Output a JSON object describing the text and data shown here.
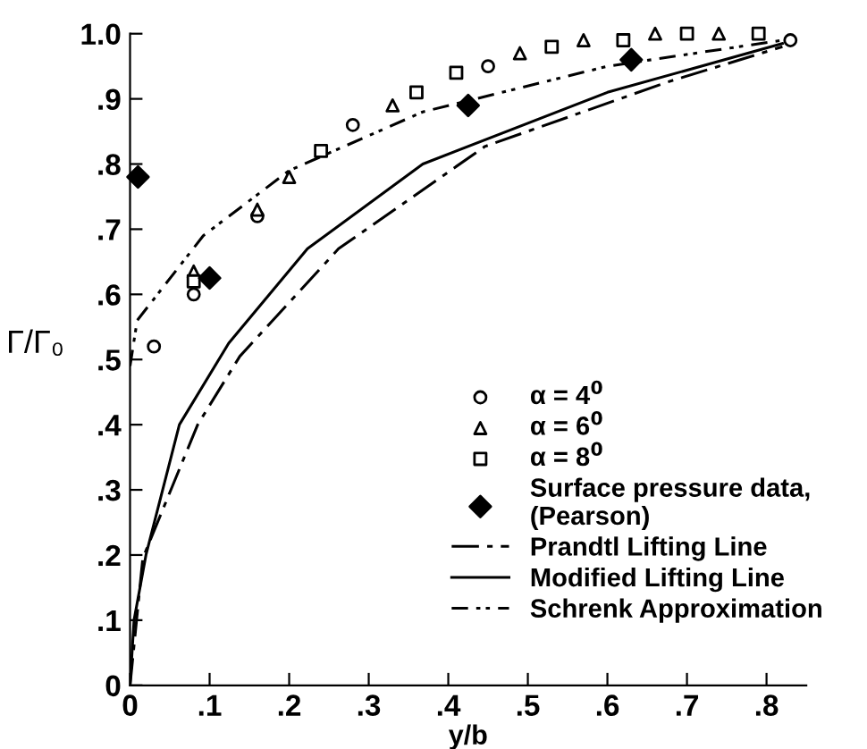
{
  "chart_data": {
    "type": "scatter",
    "xlabel": "y/b",
    "ylabel": "Γ/Γ₀",
    "xlim": [
      0,
      0.85
    ],
    "ylim": [
      0,
      1.0
    ],
    "xticks": [
      {
        "value": 0,
        "label": "0"
      },
      {
        "value": 0.1,
        "label": ".1"
      },
      {
        "value": 0.2,
        "label": ".2"
      },
      {
        "value": 0.3,
        "label": ".3"
      },
      {
        "value": 0.4,
        "label": ".4"
      },
      {
        "value": 0.5,
        "label": ".5"
      },
      {
        "value": 0.6,
        "label": ".6"
      },
      {
        "value": 0.7,
        "label": ".7"
      },
      {
        "value": 0.8,
        "label": ".8"
      }
    ],
    "yticks": [
      {
        "value": 0,
        "label": "0"
      },
      {
        "value": 0.1,
        "label": ".1"
      },
      {
        "value": 0.2,
        "label": ".2"
      },
      {
        "value": 0.3,
        "label": ".3"
      },
      {
        "value": 0.4,
        "label": ".4"
      },
      {
        "value": 0.5,
        "label": ".5"
      },
      {
        "value": 0.6,
        "label": ".6"
      },
      {
        "value": 0.7,
        "label": ".7"
      },
      {
        "value": 0.8,
        "label": ".8"
      },
      {
        "value": 0.9,
        "label": ".9"
      },
      {
        "value": 1.0,
        "label": "1.0"
      }
    ],
    "grid": false,
    "legend": "right",
    "series": [
      {
        "name": "α = 4$^{0}$",
        "marker": "circle",
        "color": "#000000",
        "x": [
          0.03,
          0.08,
          0.16,
          0.28,
          0.45,
          0.83
        ],
        "values": [
          0.52,
          0.6,
          0.72,
          0.86,
          0.95,
          0.99
        ]
      },
      {
        "name": "α = 6$^{0}$",
        "marker": "triangle",
        "color": "#000000",
        "x": [
          0.08,
          0.16,
          0.2,
          0.33,
          0.49,
          0.57,
          0.66,
          0.74
        ],
        "values": [
          0.635,
          0.73,
          0.78,
          0.89,
          0.97,
          0.99,
          1.0,
          1.0
        ]
      },
      {
        "name": "α = 8$^{0}$",
        "marker": "square",
        "color": "#000000",
        "x": [
          0.08,
          0.24,
          0.36,
          0.41,
          0.53,
          0.62,
          0.7,
          0.79
        ],
        "values": [
          0.62,
          0.82,
          0.91,
          0.94,
          0.98,
          0.99,
          1.0,
          1.0
        ]
      },
      {
        "name": "Surface pressure data,\n(Pearson)",
        "marker": "diamond",
        "color": "#000000",
        "x": [
          0.01,
          0.1,
          0.425,
          0.63
        ],
        "values": [
          0.78,
          0.625,
          0.89,
          0.96
        ]
      },
      {
        "name": "Prandtl Lifting Line",
        "type": "line",
        "line_style": "dashdot",
        "color": "#000000",
        "x": [
          0.0,
          0.016,
          0.085,
          0.138,
          0.262,
          0.446,
          0.676,
          0.82
        ],
        "values": [
          0.0,
          0.195,
          0.4,
          0.505,
          0.67,
          0.827,
          0.926,
          0.98
        ]
      },
      {
        "name": "Modified Lifting Line",
        "type": "line",
        "line_style": "solid",
        "color": "#000000",
        "x": [
          0.0,
          0.005,
          0.02,
          0.062,
          0.124,
          0.223,
          0.368,
          0.6,
          0.82
        ],
        "values": [
          0.0,
          0.1,
          0.2,
          0.4,
          0.525,
          0.67,
          0.8,
          0.91,
          0.985
        ]
      },
      {
        "name": "Schrenk Approximation",
        "type": "line",
        "line_style": "dashdotdot",
        "color": "#000000",
        "x": [
          0.0,
          0.009,
          0.092,
          0.2,
          0.368,
          0.6,
          0.82
        ],
        "values": [
          0.49,
          0.56,
          0.69,
          0.79,
          0.88,
          0.95,
          0.99
        ]
      }
    ]
  }
}
